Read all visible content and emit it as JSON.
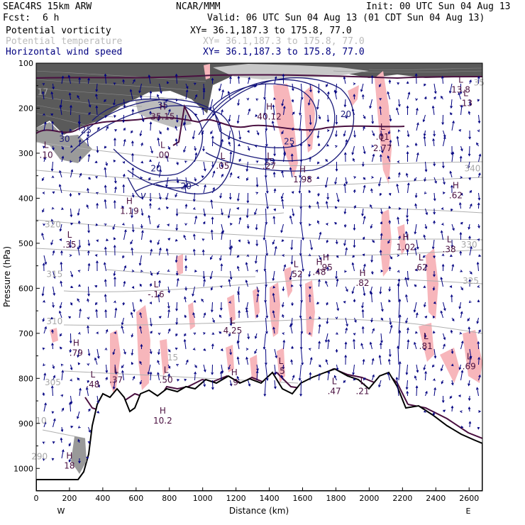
{
  "header": {
    "model": "SEAC4RS 15km ARW",
    "forecast_label": "Fcst:",
    "forecast_value": "6 h",
    "org": "NCAR/MMM",
    "init": "Init: 00 UTC Sun 04 Aug 13",
    "valid": "Valid: 06 UTC Sun 04 Aug 13 (01 CDT Sun 04 Aug 13)",
    "xy_label": "XY=",
    "xy_value": "36.1,187.3 to 175.8, 77.0"
  },
  "fields": [
    {
      "name": "Potential vorticity",
      "color": "#000000"
    },
    {
      "name": "Potential temperature",
      "color": "#bbbbbb"
    },
    {
      "name": "Horizontal wind speed",
      "color": "#000080"
    }
  ],
  "chart_data": {
    "type": "cross-section",
    "xlabel": "Distance (km)",
    "ylabel": "Pressure (hPa)",
    "xlim": [
      0,
      2680
    ],
    "ylim": [
      1050,
      100
    ],
    "x_ticks": [
      "0",
      "200",
      "400",
      "600",
      "800",
      "1000",
      "1200",
      "1400",
      "1600",
      "1800",
      "2000",
      "2200",
      "2400",
      "2600"
    ],
    "y_ticks": [
      "100",
      "200",
      "300",
      "400",
      "500",
      "600",
      "700",
      "800",
      "900",
      "1000"
    ],
    "x_end_labels": {
      "left": "W",
      "right": "E"
    },
    "theta_labels": [
      {
        "text": "320",
        "x": 100,
        "p": 465
      },
      {
        "text": "315",
        "x": 110,
        "p": 575
      },
      {
        "text": "310",
        "x": 110,
        "p": 680
      },
      {
        "text": "305",
        "x": 100,
        "p": 815
      },
      {
        "text": "290",
        "x": 20,
        "p": 980
      },
      {
        "text": "340",
        "x": 2620,
        "p": 340
      },
      {
        "text": "330",
        "x": 2600,
        "p": 510
      },
      {
        "text": "325",
        "x": 2610,
        "p": 590
      },
      {
        "text": "35",
        "x": 2660,
        "p": 150
      },
      {
        "text": "15",
        "x": 820,
        "p": 760
      },
      {
        "text": "10",
        "x": 30,
        "p": 900
      },
      {
        "text": "17",
        "x": 40,
        "p": 170
      }
    ],
    "speed_labels": [
      {
        "text": "35",
        "x": 760,
        "p": 200
      },
      {
        "text": "30",
        "x": 170,
        "p": 275
      },
      {
        "text": "25",
        "x": 300,
        "p": 255
      },
      {
        "text": "25",
        "x": 1520,
        "p": 280
      },
      {
        "text": "20",
        "x": 720,
        "p": 340
      },
      {
        "text": "20",
        "x": 900,
        "p": 380
      },
      {
        "text": "20",
        "x": 1860,
        "p": 220
      },
      {
        "text": "25",
        "x": 1400,
        "p": 325
      }
    ],
    "extrema": [
      {
        "kind": "L",
        "value": ".10",
        "x": 60,
        "p": 310
      },
      {
        "kind": "H",
        "value": "35.15",
        "x": 760,
        "p": 225
      },
      {
        "kind": "L",
        "value": ".00",
        "x": 760,
        "p": 310
      },
      {
        "kind": "L",
        "value": ".05",
        "x": 1120,
        "p": 335
      },
      {
        "kind": "L",
        "value": ".27",
        "x": 1400,
        "p": 335
      },
      {
        "kind": "H",
        "value": "40.12",
        "x": 1400,
        "p": 225
      },
      {
        "kind": "L",
        "value": ".01",
        "x": 2080,
        "p": 270
      },
      {
        "kind": "L",
        "value": "2.77",
        "x": 2080,
        "p": 295
      },
      {
        "kind": "H",
        "value": "1.98",
        "x": 1600,
        "p": 365
      },
      {
        "kind": "H",
        "value": ".62",
        "x": 2520,
        "p": 400
      },
      {
        "kind": "L",
        "value": "13.8",
        "x": 2550,
        "p": 165
      },
      {
        "kind": "L",
        "value": ".13",
        "x": 2580,
        "p": 195
      },
      {
        "kind": "H",
        "value": "1.19",
        "x": 560,
        "p": 435
      },
      {
        "kind": "L",
        "value": ".35",
        "x": 200,
        "p": 510
      },
      {
        "kind": "H",
        "value": "1.02",
        "x": 2220,
        "p": 515
      },
      {
        "kind": "L",
        "value": ".38",
        "x": 2480,
        "p": 520
      },
      {
        "kind": "L",
        "value": ".52",
        "x": 1560,
        "p": 575
      },
      {
        "kind": "H",
        "value": ".48",
        "x": 1700,
        "p": 570
      },
      {
        "kind": "H",
        "value": ".95",
        "x": 1740,
        "p": 560
      },
      {
        "kind": "H",
        "value": ".82",
        "x": 1960,
        "p": 595
      },
      {
        "kind": "L",
        "value": ".62",
        "x": 2310,
        "p": 560
      },
      {
        "kind": "L",
        "value": "-.16",
        "x": 720,
        "p": 620
      },
      {
        "kind": "L",
        "value": "4.25",
        "x": 1180,
        "p": 700
      },
      {
        "kind": "H",
        "value": ".79",
        "x": 240,
        "p": 750
      },
      {
        "kind": "L",
        "value": ".48",
        "x": 340,
        "p": 820
      },
      {
        "kind": "L",
        "value": ".37",
        "x": 480,
        "p": 810
      },
      {
        "kind": "L",
        "value": ".50",
        "x": 780,
        "p": 810
      },
      {
        "kind": "L",
        "value": ".81",
        "x": 2340,
        "p": 735
      },
      {
        "kind": "L",
        "value": ".69",
        "x": 2600,
        "p": 780
      },
      {
        "kind": "L",
        "value": ".47",
        "x": 1790,
        "p": 835
      },
      {
        "kind": "L",
        "value": ".21",
        "x": 1960,
        "p": 835
      },
      {
        "kind": "H",
        "value": "18",
        "x": 200,
        "p": 1000
      },
      {
        "kind": "H",
        "value": "10.2",
        "x": 760,
        "p": 900
      },
      {
        "kind": "H",
        "value": ".9",
        "x": 1190,
        "p": 815
      },
      {
        "kind": "L",
        "value": ".5",
        "x": 1470,
        "p": 790
      }
    ],
    "colors": {
      "pv_fill": "#555555",
      "pv_contour": "#4a1040",
      "theta_contour": "#b0b0b0",
      "wind_speed": "#1a1a7a",
      "wind_vectors": "#000080",
      "pink_fill": "#f7b6bb",
      "terrain": "#000000"
    },
    "grid": false
  }
}
